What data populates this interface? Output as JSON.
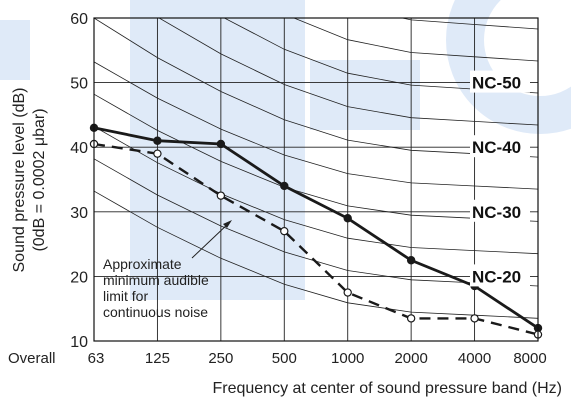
{
  "chart_data": {
    "type": "line",
    "xlabel": "Frequency at center of sound pressure band (Hz)",
    "ylabel_line1": "Sound pressure level (dB)",
    "ylabel_line2": "(0dB = 0.0002 μbar)",
    "x_overall_label": "Overall",
    "categories": [
      "63",
      "125",
      "250",
      "500",
      "1000",
      "2000",
      "4000",
      "8000"
    ],
    "yticks": [
      10,
      20,
      30,
      40,
      50,
      60
    ],
    "ylim": [
      10,
      60
    ],
    "grid": true,
    "series": [
      {
        "style": "solid-markers",
        "color": "#1a1a1a",
        "values": [
          43,
          41,
          40.5,
          34,
          29,
          22.5,
          18.5,
          12
        ]
      },
      {
        "style": "dashed-open-markers",
        "color": "#1a1a1a",
        "values": [
          40.5,
          39,
          32.5,
          27,
          17.5,
          13.5,
          13.5,
          11
        ]
      }
    ],
    "nc_labels": [
      {
        "text": "NC-50",
        "level": 50
      },
      {
        "text": "NC-40",
        "level": 40
      },
      {
        "text": "NC-30",
        "level": 30
      },
      {
        "text": "NC-20",
        "level": 20
      }
    ],
    "annotation": {
      "lines": [
        "Approximate",
        "minimum audible",
        "limit for",
        "continuous noise"
      ]
    },
    "curve_color": "#222222",
    "watermark_color": "#dde9f8"
  }
}
